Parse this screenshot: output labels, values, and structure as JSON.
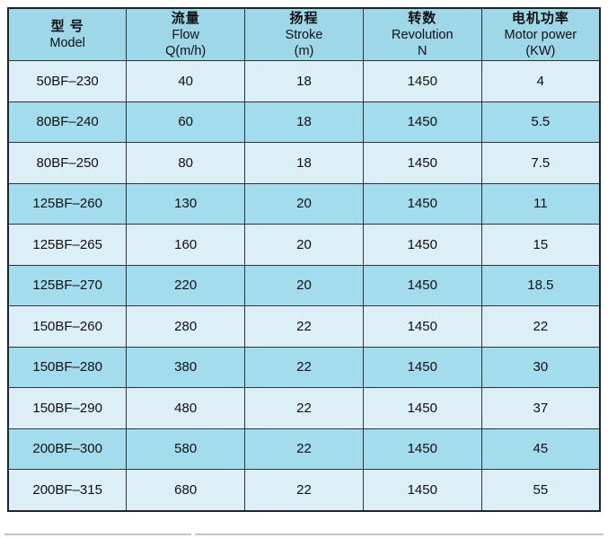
{
  "table": {
    "columns": [
      {
        "cn": "型 号",
        "en": "Model",
        "unit": ""
      },
      {
        "cn": "流量",
        "en": "Flow",
        "unit": "Q(m/h)"
      },
      {
        "cn": "扬程",
        "en": "Stroke",
        "unit": "(m)"
      },
      {
        "cn": "转数",
        "en": "Revolution",
        "unit": "N"
      },
      {
        "cn": "电机功率",
        "en": "Motor power",
        "unit": "(KW)"
      }
    ],
    "rows": [
      {
        "model": "50BF–230",
        "flow": "40",
        "stroke": "18",
        "revolution": "1450",
        "power": "4"
      },
      {
        "model": "80BF–240",
        "flow": "60",
        "stroke": "18",
        "revolution": "1450",
        "power": "5.5"
      },
      {
        "model": "80BF–250",
        "flow": "80",
        "stroke": "18",
        "revolution": "1450",
        "power": "7.5"
      },
      {
        "model": "125BF–260",
        "flow": "130",
        "stroke": "20",
        "revolution": "1450",
        "power": "11"
      },
      {
        "model": "125BF–265",
        "flow": "160",
        "stroke": "20",
        "revolution": "1450",
        "power": "15"
      },
      {
        "model": "125BF–270",
        "flow": "220",
        "stroke": "20",
        "revolution": "1450",
        "power": "18.5"
      },
      {
        "model": "150BF–260",
        "flow": "280",
        "stroke": "22",
        "revolution": "1450",
        "power": "22"
      },
      {
        "model": "150BF–280",
        "flow": "380",
        "stroke": "22",
        "revolution": "1450",
        "power": "30"
      },
      {
        "model": "150BF–290",
        "flow": "480",
        "stroke": "22",
        "revolution": "1450",
        "power": "37"
      },
      {
        "model": "200BF–300",
        "flow": "580",
        "stroke": "22",
        "revolution": "1450",
        "power": "45"
      },
      {
        "model": "200BF–315",
        "flow": "680",
        "stroke": "22",
        "revolution": "1450",
        "power": "55"
      }
    ]
  },
  "colors": {
    "header_bg": "#9ed7e7",
    "row_dark": "#a3dcec",
    "row_light": "#dceff7",
    "grid_border": "#2e3338",
    "outer_border": "#1f2428",
    "page_bg": "#ffffff",
    "text": "#101010"
  }
}
